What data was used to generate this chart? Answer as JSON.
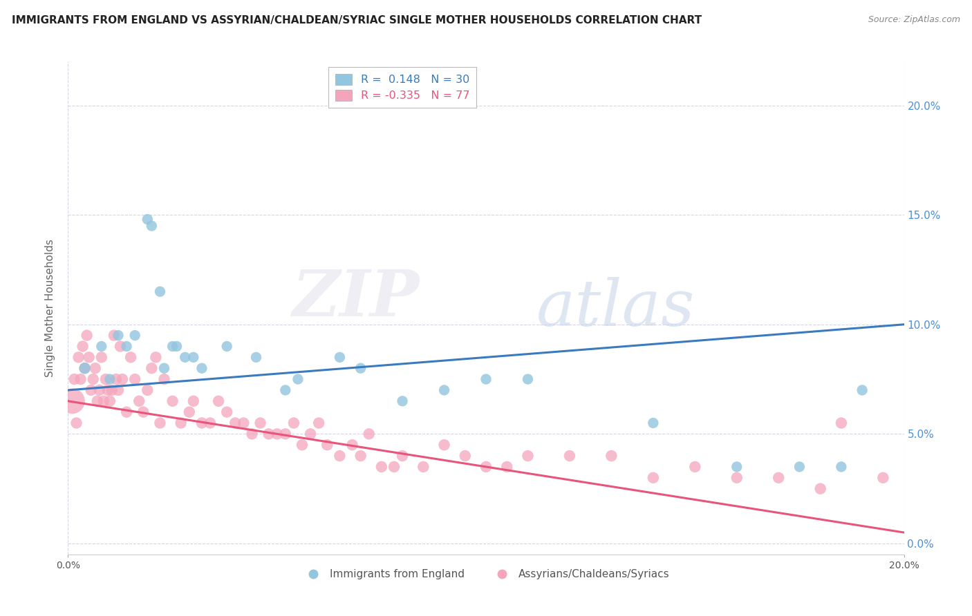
{
  "title": "IMMIGRANTS FROM ENGLAND VS ASSYRIAN/CHALDEAN/SYRIAC SINGLE MOTHER HOUSEHOLDS CORRELATION CHART",
  "source": "Source: ZipAtlas.com",
  "ylabel": "Single Mother Households",
  "xlim": [
    0.0,
    20.0
  ],
  "ylim": [
    -0.5,
    22.0
  ],
  "yticks": [
    0.0,
    5.0,
    10.0,
    15.0,
    20.0
  ],
  "ytick_labels_right": [
    "0.0%",
    "5.0%",
    "10.0%",
    "15.0%",
    "20.0%"
  ],
  "blue_R": 0.148,
  "blue_N": 30,
  "pink_R": -0.335,
  "pink_N": 77,
  "blue_color": "#92c5de",
  "pink_color": "#f4a5bb",
  "blue_line_color": "#3a7abf",
  "pink_line_color": "#e8547a",
  "legend_label_blue": "Immigrants from England",
  "legend_label_pink": "Assyrians/Chaldeans/Syriacs",
  "watermark_zip": "ZIP",
  "watermark_atlas": "atlas",
  "bg_color": "#ffffff",
  "grid_color": "#d5d5e8",
  "blue_line_start_y": 7.0,
  "blue_line_end_y": 10.0,
  "pink_line_start_y": 6.5,
  "pink_line_end_y": 0.5,
  "blue_scatter_x": [
    0.4,
    0.8,
    1.0,
    1.2,
    1.4,
    1.6,
    1.9,
    2.0,
    2.2,
    2.3,
    2.5,
    2.6,
    2.8,
    3.0,
    3.2,
    3.8,
    4.5,
    5.2,
    5.5,
    6.5,
    7.0,
    8.0,
    9.0,
    10.0,
    11.0,
    14.0,
    16.0,
    17.5,
    18.5,
    19.0
  ],
  "blue_scatter_y": [
    8.0,
    9.0,
    7.5,
    9.5,
    9.0,
    9.5,
    14.8,
    14.5,
    11.5,
    8.0,
    9.0,
    9.0,
    8.5,
    8.5,
    8.0,
    9.0,
    8.5,
    7.0,
    7.5,
    8.5,
    8.0,
    6.5,
    7.0,
    7.5,
    7.5,
    5.5,
    3.5,
    3.5,
    3.5,
    7.0
  ],
  "blue_scatter_size": [
    40,
    35,
    35,
    35,
    35,
    35,
    35,
    35,
    35,
    35,
    35,
    35,
    35,
    35,
    35,
    35,
    35,
    35,
    35,
    35,
    35,
    35,
    35,
    35,
    35,
    35,
    35,
    35,
    35,
    35
  ],
  "pink_scatter_x": [
    0.1,
    0.15,
    0.2,
    0.25,
    0.3,
    0.35,
    0.4,
    0.45,
    0.5,
    0.55,
    0.6,
    0.65,
    0.7,
    0.75,
    0.8,
    0.85,
    0.9,
    0.95,
    1.0,
    1.05,
    1.1,
    1.15,
    1.2,
    1.25,
    1.3,
    1.4,
    1.5,
    1.6,
    1.7,
    1.8,
    1.9,
    2.0,
    2.1,
    2.2,
    2.3,
    2.5,
    2.7,
    2.9,
    3.0,
    3.2,
    3.4,
    3.6,
    3.8,
    4.0,
    4.2,
    4.4,
    4.6,
    4.8,
    5.0,
    5.2,
    5.4,
    5.6,
    5.8,
    6.0,
    6.2,
    6.5,
    6.8,
    7.0,
    7.2,
    7.5,
    7.8,
    8.0,
    8.5,
    9.0,
    9.5,
    10.0,
    10.5,
    11.0,
    12.0,
    13.0,
    14.0,
    15.0,
    16.0,
    17.0,
    18.0,
    18.5,
    19.5
  ],
  "pink_scatter_y": [
    6.5,
    7.5,
    5.5,
    8.5,
    7.5,
    9.0,
    8.0,
    9.5,
    8.5,
    7.0,
    7.5,
    8.0,
    6.5,
    7.0,
    8.5,
    6.5,
    7.5,
    7.0,
    6.5,
    7.0,
    9.5,
    7.5,
    7.0,
    9.0,
    7.5,
    6.0,
    8.5,
    7.5,
    6.5,
    6.0,
    7.0,
    8.0,
    8.5,
    5.5,
    7.5,
    6.5,
    5.5,
    6.0,
    6.5,
    5.5,
    5.5,
    6.5,
    6.0,
    5.5,
    5.5,
    5.0,
    5.5,
    5.0,
    5.0,
    5.0,
    5.5,
    4.5,
    5.0,
    5.5,
    4.5,
    4.0,
    4.5,
    4.0,
    5.0,
    3.5,
    3.5,
    4.0,
    3.5,
    4.5,
    4.0,
    3.5,
    3.5,
    4.0,
    4.0,
    4.0,
    3.0,
    3.5,
    3.0,
    3.0,
    2.5,
    5.5,
    3.0
  ],
  "pink_scatter_size": [
    200,
    40,
    40,
    40,
    40,
    40,
    40,
    40,
    40,
    40,
    40,
    40,
    40,
    40,
    40,
    40,
    40,
    40,
    40,
    40,
    40,
    40,
    40,
    40,
    40,
    40,
    40,
    40,
    40,
    40,
    40,
    40,
    40,
    40,
    40,
    40,
    40,
    40,
    40,
    40,
    40,
    40,
    40,
    40,
    40,
    40,
    40,
    40,
    40,
    40,
    40,
    40,
    40,
    40,
    40,
    40,
    40,
    40,
    40,
    40,
    40,
    40,
    40,
    40,
    40,
    40,
    40,
    40,
    40,
    40,
    40,
    40,
    40,
    40,
    40,
    40,
    40
  ]
}
